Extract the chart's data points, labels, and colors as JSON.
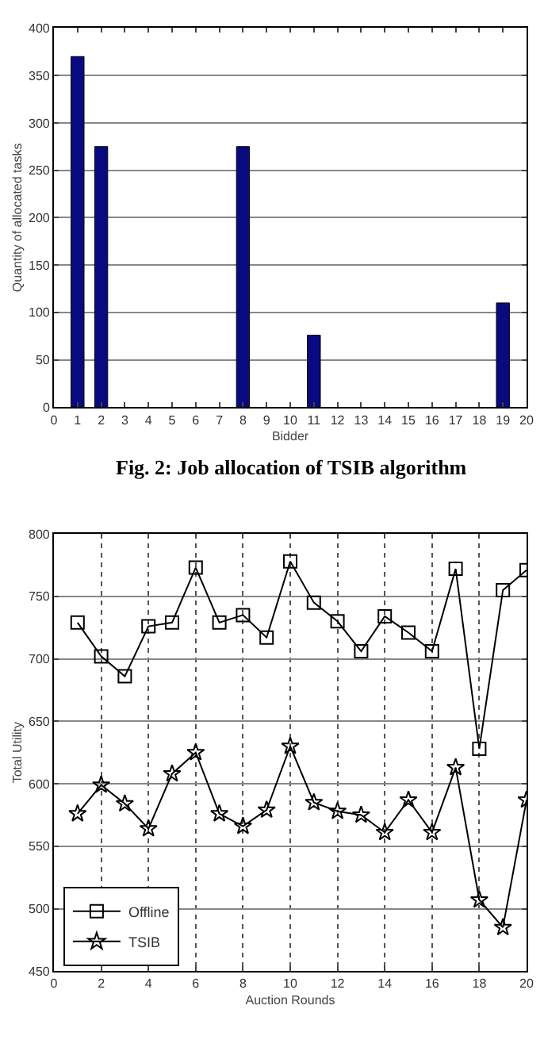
{
  "chart_data": [
    {
      "type": "bar",
      "xlabel": "Bidder",
      "ylabel": "Quantity of allocated tasks",
      "annotations": [
        "Fig. 2: Job allocation of TSIB algorithm"
      ],
      "x": [
        1,
        2,
        8,
        11,
        19
      ],
      "values": [
        370,
        275,
        275,
        76,
        110
      ],
      "color": "#0a0a80",
      "xlim": [
        0,
        20
      ],
      "xticks": [
        0,
        1,
        2,
        3,
        4,
        5,
        6,
        7,
        8,
        9,
        10,
        11,
        12,
        13,
        14,
        15,
        16,
        17,
        18,
        19,
        20
      ],
      "ylim": [
        0,
        400
      ],
      "yticks": [
        0,
        50,
        100,
        150,
        200,
        250,
        300,
        350,
        400
      ],
      "grid": "y",
      "legend": false
    },
    {
      "type": "line",
      "xlabel": "Auction Rounds",
      "ylabel": "Total Utility",
      "x": [
        1,
        2,
        3,
        4,
        5,
        6,
        7,
        8,
        9,
        10,
        11,
        12,
        13,
        14,
        15,
        16,
        17,
        18,
        19,
        20
      ],
      "series": [
        {
          "name": "Offline",
          "color": "#000000",
          "marker": "square",
          "values": [
            729,
            702,
            686,
            726,
            729,
            773,
            729,
            735,
            717,
            778,
            745,
            730,
            706,
            734,
            721,
            706,
            772,
            628,
            755,
            771
          ]
        },
        {
          "name": "TSIB",
          "color": "#000000",
          "marker": "star",
          "values": [
            576,
            599,
            584,
            564,
            608,
            625,
            576,
            566,
            579,
            630,
            585,
            578,
            575,
            561,
            587,
            561,
            613,
            507,
            485,
            587
          ]
        }
      ],
      "xlim": [
        0,
        20
      ],
      "xticks": [
        0,
        2,
        4,
        6,
        8,
        10,
        12,
        14,
        16,
        18,
        20
      ],
      "ylim": [
        450,
        800
      ],
      "yticks": [
        450,
        500,
        550,
        600,
        650,
        700,
        750,
        800
      ],
      "grid": true,
      "legend": "bottom left",
      "line_style": "solid"
    }
  ]
}
